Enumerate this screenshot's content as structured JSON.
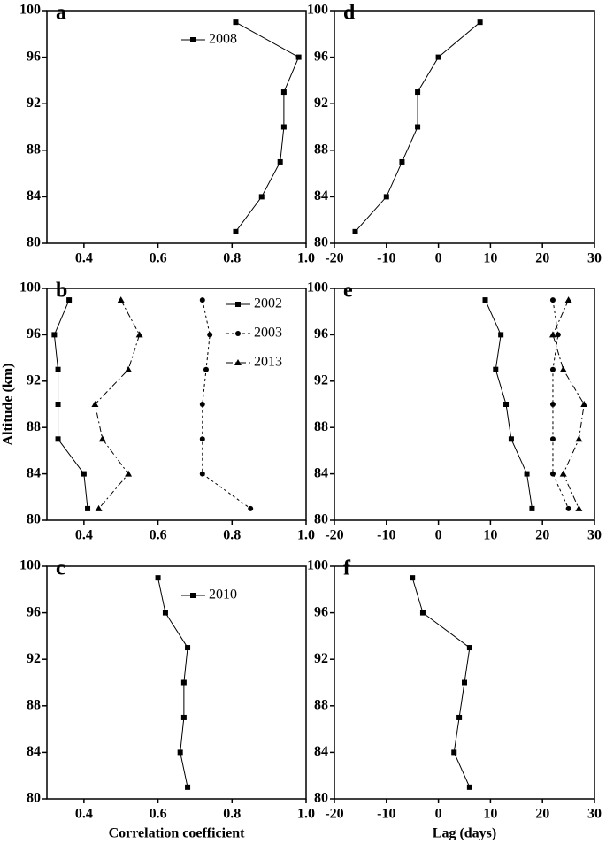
{
  "chart_data": [
    {
      "type": "line",
      "label": "a",
      "y": [
        99,
        96,
        93,
        90,
        87,
        84,
        81
      ],
      "series": [
        {
          "name": "2008",
          "color": "#000000",
          "marker": "square",
          "line_style": "solid",
          "values": [
            0.81,
            0.98,
            0.94,
            0.94,
            0.93,
            0.88,
            0.81
          ]
        }
      ],
      "legend": "upper center",
      "xlim": [
        0.3,
        1.0
      ],
      "xticks": [
        0.4,
        0.6,
        0.8,
        {
          "value": 1,
          "label": "1.0"
        }
      ],
      "ylim": [
        80,
        100
      ],
      "yticks": [
        80,
        84,
        88,
        92,
        96,
        100
      ]
    },
    {
      "type": "line",
      "label": "b",
      "y_label": "Altitude (km)",
      "y": [
        99,
        96,
        93,
        90,
        87,
        84,
        81
      ],
      "series": [
        {
          "name": "2002",
          "color": "#000000",
          "marker": "square",
          "line_style": "solid",
          "values": [
            0.36,
            0.32,
            0.33,
            0.33,
            0.33,
            0.4,
            0.41
          ]
        },
        {
          "name": "2003",
          "color": "#000000",
          "marker": "circle",
          "line_style": "dashed",
          "values": [
            0.72,
            0.74,
            0.73,
            0.72,
            0.72,
            0.72,
            0.85
          ]
        },
        {
          "name": "2013",
          "color": "#000000",
          "marker": "triangle",
          "line_style": "dashdot",
          "values": [
            0.5,
            0.55,
            0.52,
            0.43,
            0.45,
            0.52,
            0.44
          ]
        }
      ],
      "legend": "upper right",
      "xlim": [
        0.3,
        1.0
      ],
      "xticks": [
        0.4,
        0.6,
        0.8,
        {
          "value": 1,
          "label": "1.0"
        }
      ],
      "ylim": [
        80,
        100
      ],
      "yticks": [
        80,
        84,
        88,
        92,
        96,
        100
      ]
    },
    {
      "type": "line",
      "label": "c",
      "x_label": "Correlation coefficient",
      "y": [
        99,
        96,
        93,
        90,
        87,
        84,
        81
      ],
      "series": [
        {
          "name": "2010",
          "color": "#000000",
          "marker": "square",
          "line_style": "solid",
          "values": [
            0.6,
            0.62,
            0.68,
            0.67,
            0.67,
            0.66,
            0.68
          ]
        }
      ],
      "legend": "upper center",
      "xlim": [
        0.3,
        1.0
      ],
      "xticks": [
        0.4,
        0.6,
        0.8,
        {
          "value": 1,
          "label": "1.0"
        }
      ],
      "ylim": [
        80,
        100
      ],
      "yticks": [
        80,
        84,
        88,
        92,
        96,
        100
      ]
    },
    {
      "type": "line",
      "label": "d",
      "y": [
        99,
        96,
        93,
        90,
        87,
        84,
        81
      ],
      "series": [
        {
          "color": "#000000",
          "marker": "square",
          "line_style": "solid",
          "values": [
            8,
            0,
            -4,
            -4,
            -7,
            -10,
            -16
          ]
        }
      ],
      "xlim": [
        -20,
        30
      ],
      "xticks": [
        -20,
        -10,
        0,
        10,
        20,
        30
      ],
      "ylim": [
        80,
        100
      ],
      "yticks": [
        80,
        84,
        88,
        92,
        96,
        100
      ]
    },
    {
      "type": "line",
      "label": "e",
      "y": [
        99,
        96,
        93,
        90,
        87,
        84,
        81
      ],
      "series": [
        {
          "color": "#000000",
          "marker": "square",
          "line_style": "solid",
          "values": [
            9,
            12,
            11,
            13,
            14,
            17,
            18
          ]
        },
        {
          "color": "#000000",
          "marker": "circle",
          "line_style": "dashed",
          "values": [
            22,
            23,
            22,
            22,
            22,
            22,
            25
          ]
        },
        {
          "color": "#000000",
          "marker": "triangle",
          "line_style": "dashdot",
          "values": [
            25,
            22,
            24,
            28,
            27,
            24,
            27
          ]
        }
      ],
      "xlim": [
        -20,
        30
      ],
      "xticks": [
        -20,
        -10,
        0,
        10,
        20,
        30
      ],
      "ylim": [
        80,
        100
      ],
      "yticks": [
        80,
        84,
        88,
        92,
        96,
        100
      ]
    },
    {
      "type": "line",
      "label": "f",
      "x_label": "Lag (days)",
      "y": [
        99,
        96,
        93,
        90,
        87,
        84,
        81
      ],
      "series": [
        {
          "color": "#000000",
          "marker": "square",
          "line_style": "solid",
          "values": [
            -5,
            -3,
            6,
            5,
            4,
            3,
            6
          ]
        }
      ],
      "xlim": [
        -20,
        30
      ],
      "xticks": [
        -20,
        -10,
        0,
        10,
        20,
        30
      ],
      "ylim": [
        80,
        100
      ],
      "yticks": [
        80,
        84,
        88,
        92,
        96,
        100
      ]
    }
  ]
}
